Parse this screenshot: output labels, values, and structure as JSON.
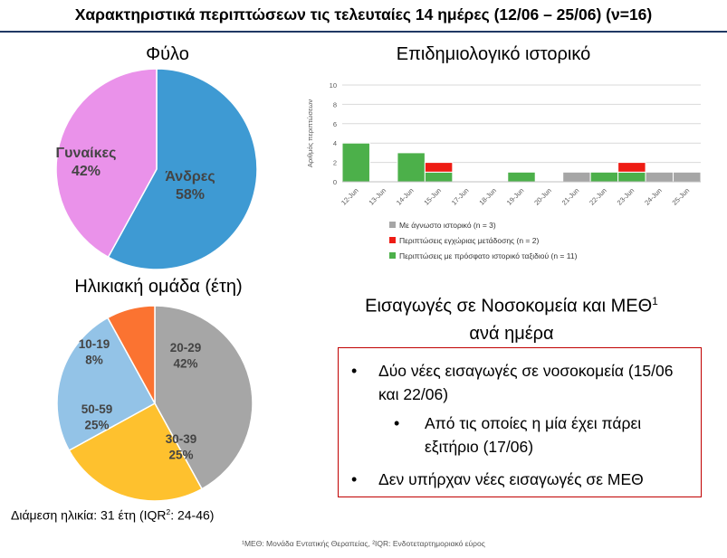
{
  "title": "Χαρακτηριστικά περιπτώσεων τις τελευταίες 14 ημέρες (12/06 – 25/06) (ν=16)",
  "sex_chart_title": "Φύλο",
  "age_chart_title": "Ηλικιακή ομάδα (έτη)",
  "epi_chart_title": "Επιδημιολογικό ιστορικό",
  "median_age_text": "Διάμεση ηλικία: 31 έτη (IQR",
  "median_age_sup": "2",
  "median_age_tail": ": 24-46)",
  "admissions": {
    "title_line1": "Εισαγωγές σε Νοσοκομεία και ΜΕΘ",
    "title_sup": "1",
    "title_line2": "ανά ημέρα",
    "bullet1": "Δύο νέες εισαγωγές σε νοσοκομεία (15/06 και 22/06)",
    "sub_bullet": "Από τις οποίες η μία έχει πάρει εξιτήριο (17/06)",
    "bullet2": "Δεν υπήρχαν νέες εισαγωγές σε ΜΕΘ"
  },
  "footnote": "¹ΜΕΘ: Μονάδα Εντατικής Θεραπείας, ²IQR: Ενδοτεταρτημοριακό εύρος",
  "chart_data": [
    {
      "type": "pie",
      "title": "Φύλο",
      "labels": [
        "Άνδρες",
        "Γυναίκες"
      ],
      "values": [
        58,
        42
      ],
      "value_labels": [
        "58%",
        "42%"
      ],
      "colors": [
        "#3e9ad3",
        "#ea92ea"
      ]
    },
    {
      "type": "pie",
      "title": "Ηλικιακή ομάδα (έτη)",
      "labels": [
        "20-29",
        "30-39",
        "50-59",
        "10-19"
      ],
      "values": [
        42,
        25,
        25,
        8
      ],
      "value_labels": [
        "42%",
        "25%",
        "25%",
        "8%"
      ],
      "colors": [
        "#a6a6a6",
        "#fec12e",
        "#93c3e7",
        "#fb7331"
      ]
    },
    {
      "type": "bar",
      "stacked": true,
      "title": "Επιδημιολογικό ιστορικό",
      "ylabel": "Αριθμός περιπτώσεων",
      "ylim": [
        0,
        10
      ],
      "yticks": [
        0,
        2,
        4,
        6,
        8,
        10
      ],
      "grid": true,
      "categories": [
        "12-Jun",
        "13-Jun",
        "14-Jun",
        "15-Jun",
        "17-Jun",
        "18-Jun",
        "19-Jun",
        "20-Jun",
        "21-Jun",
        "22-Jun",
        "23-Jun",
        "24-Jun",
        "25-Jun"
      ],
      "series": [
        {
          "name": "Περιπτώσεις με πρόσφατο ιστορικό ταξιδιού (n = 11)",
          "color": "#4cb04a",
          "values": [
            4,
            0,
            3,
            1,
            0,
            0,
            1,
            0,
            0,
            1,
            1,
            0,
            0
          ]
        },
        {
          "name": "Περιπτώσεις εγχώριας μετάδοσης (n = 2)",
          "color": "#ee1c14",
          "values": [
            0,
            0,
            0,
            1,
            0,
            0,
            0,
            0,
            0,
            0,
            1,
            0,
            0
          ]
        },
        {
          "name": "Με άγνωστο ιστορικό (n = 3)",
          "color": "#a6a6a6",
          "values": [
            0,
            0,
            0,
            0,
            0,
            0,
            0,
            0,
            1,
            0,
            0,
            1,
            1
          ]
        }
      ],
      "legend_order": [
        "Με άγνωστο ιστορικό (n = 3)",
        "Περιπτώσεις εγχώριας μετάδοσης (n = 2)",
        "Περιπτώσεις με πρόσφατο ιστορικό ταξιδιού (n = 11)"
      ],
      "legend_position": "bottom"
    }
  ]
}
